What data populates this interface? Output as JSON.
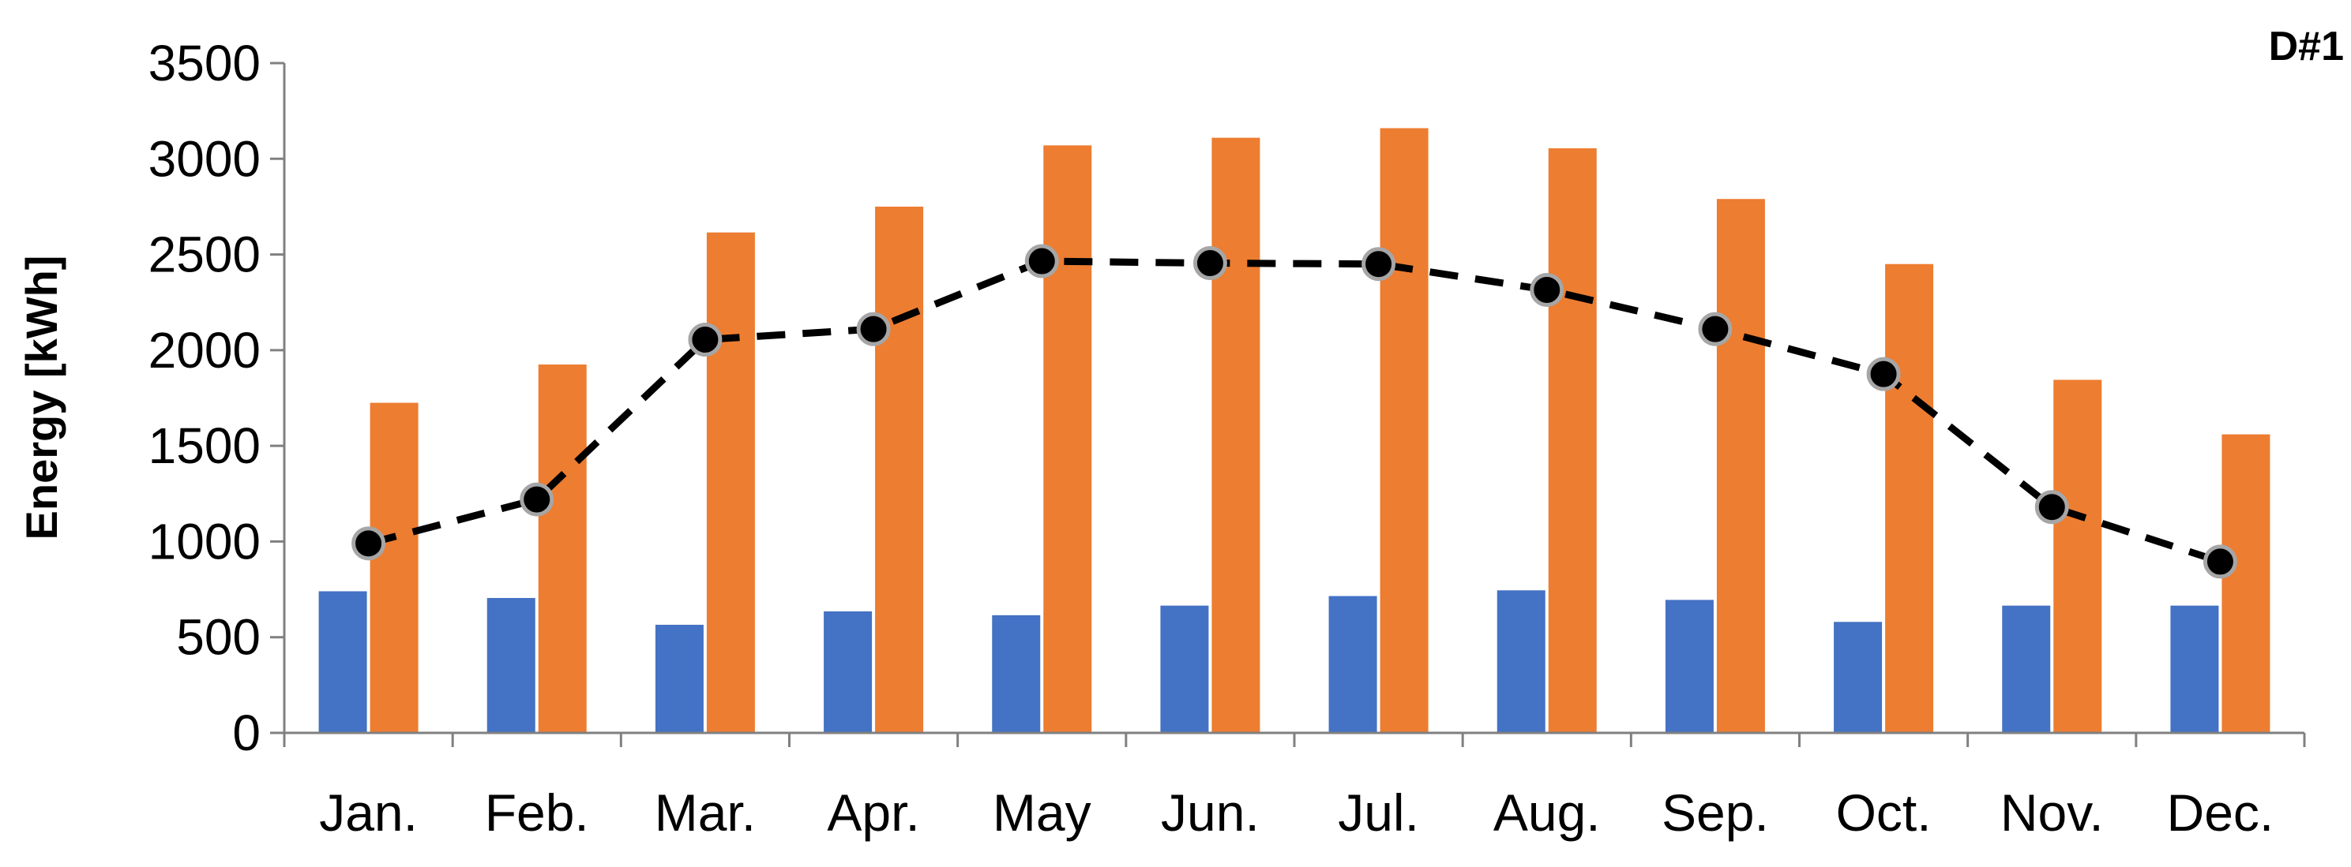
{
  "chart_data": {
    "type": "bar",
    "panel_label": "D#1",
    "title": "",
    "xlabel": "",
    "ylabel": "Energy [kWh]",
    "ylim": [
      0,
      3500
    ],
    "yticks": [
      0,
      500,
      1000,
      1500,
      2000,
      2500,
      3000,
      3500
    ],
    "grid": false,
    "legend": "none",
    "categories": [
      "Jan.",
      "Feb.",
      "Mar.",
      "Apr.",
      "May",
      "Jun.",
      "Jul.",
      "Aug.",
      "Sep.",
      "Oct.",
      "Nov.",
      "Dec."
    ],
    "series": [
      {
        "type": "bar",
        "color": "#4472C4",
        "values": [
          740,
          705,
          565,
          635,
          615,
          665,
          715,
          745,
          695,
          580,
          665,
          665
        ]
      },
      {
        "type": "bar",
        "color": "#ED7D31",
        "values": [
          1725,
          1925,
          2615,
          2750,
          3070,
          3110,
          3160,
          3055,
          2790,
          2450,
          1845,
          1560
        ]
      },
      {
        "type": "line",
        "style": "dashed",
        "marker": "circle",
        "color": "#000000",
        "values": [
          990,
          1220,
          2055,
          2110,
          2465,
          2455,
          2450,
          2315,
          2110,
          1875,
          1180,
          895
        ]
      }
    ]
  }
}
